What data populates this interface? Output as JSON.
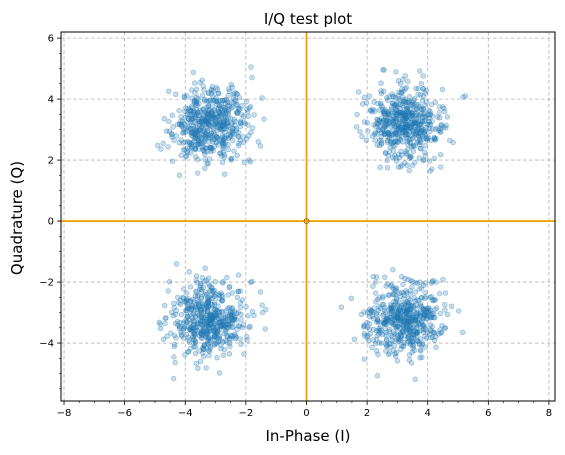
{
  "chart_data": {
    "type": "scatter",
    "title": "I/Q test plot",
    "xlabel": "In-Phase (I)",
    "ylabel": "Quadrature (Q)",
    "xlim": [
      -8.1,
      8.2
    ],
    "ylim": [
      -5.9,
      6.2
    ],
    "xticks": [
      -8,
      -6,
      -4,
      -2,
      0,
      2,
      4,
      6,
      8
    ],
    "xtick_labels": [
      "−8",
      "−6",
      "−4",
      "−2",
      "0",
      "2",
      "4",
      "6",
      "8"
    ],
    "yticks": [
      -4,
      -2,
      0,
      2,
      4,
      6
    ],
    "ytick_labels": [
      "−4",
      "−2",
      "0",
      "2",
      "4",
      "6"
    ],
    "grid": true,
    "grid_style": "dashed",
    "point_color": "#1f77b4",
    "axis_line_color": "#f0a30a",
    "reference_lines": {
      "x": 0,
      "y": 0
    },
    "origin_marker": {
      "x": 0,
      "y": 0
    },
    "clusters": [
      {
        "name": "",
        "center": [
          -3.2,
          3.2
        ],
        "spread": 0.6,
        "count": 520,
        "seed": 11
      },
      {
        "name": "",
        "center": [
          3.2,
          3.2
        ],
        "spread": 0.6,
        "count": 520,
        "seed": 23
      },
      {
        "name": "",
        "center": [
          -3.2,
          -3.2
        ],
        "spread": 0.6,
        "count": 520,
        "seed": 37
      },
      {
        "name": "",
        "center": [
          3.2,
          -3.2
        ],
        "spread": 0.6,
        "count": 520,
        "seed": 53
      }
    ]
  }
}
